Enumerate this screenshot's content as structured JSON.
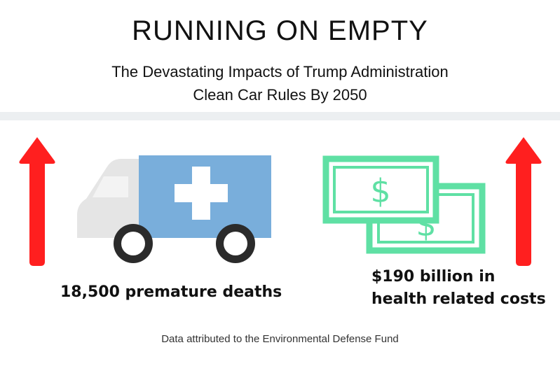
{
  "header": {
    "title": "RUNNING ON EMPTY",
    "subtitle_line1": "The Devastating Impacts of Trump Administration",
    "subtitle_line2": "Clean Car Rules By 2050"
  },
  "stats": {
    "left": {
      "text": "18,500 premature deaths",
      "icon": "ambulance-icon",
      "trend": "up-arrow-icon"
    },
    "right": {
      "text_line1": "$190 billion in",
      "text_line2": "health related costs",
      "icon": "money-bills-icon",
      "trend": "up-arrow-icon",
      "bill_symbol": "$"
    }
  },
  "colors": {
    "arrow": "#ff1f1f",
    "ambulance_body": "#7aaed9",
    "ambulance_cab": "#e5e5e5",
    "wheel": "#2b2b2b",
    "money": "#5fe0a4"
  },
  "footer": {
    "source": "Data attributed to the Environmental Defense Fund"
  }
}
